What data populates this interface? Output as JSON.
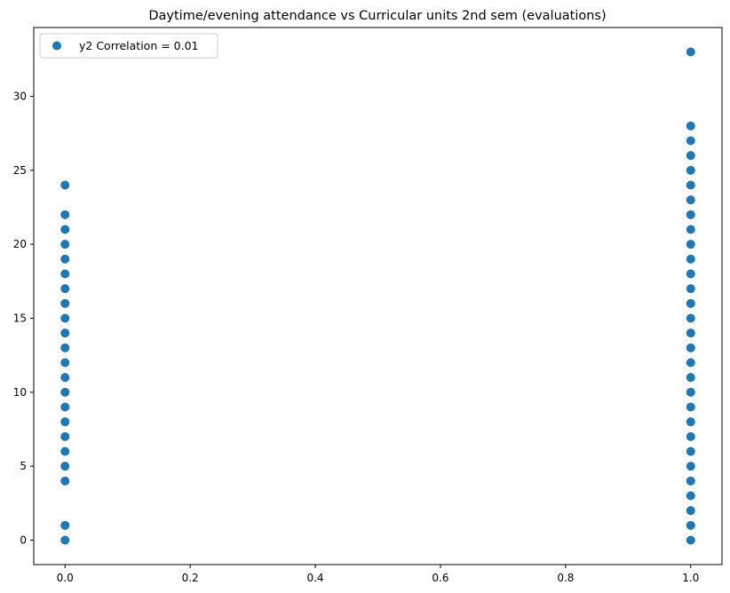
{
  "chart_data": {
    "type": "scatter",
    "title": "Daytime/evening attendance\t vs Curricular units 2nd sem (evaluations)",
    "xlabel": "",
    "ylabel": "",
    "xlim": [
      -0.05,
      1.05
    ],
    "ylim": [
      -1.65,
      34.65
    ],
    "x_ticks": [
      0.0,
      0.2,
      0.4,
      0.6,
      0.8,
      1.0
    ],
    "x_tick_labels": [
      "0.0",
      "0.2",
      "0.4",
      "0.6",
      "0.8",
      "1.0"
    ],
    "y_ticks": [
      0,
      5,
      10,
      15,
      20,
      25,
      30
    ],
    "y_tick_labels": [
      "0",
      "5",
      "10",
      "15",
      "20",
      "25",
      "30"
    ],
    "grid": false,
    "legend": {
      "placement": "top-left",
      "entries": [
        "y2 Correlation = 0.01"
      ]
    },
    "series": [
      {
        "name": "y2 Correlation = 0.01",
        "color": "#1f77b4",
        "points": [
          [
            0,
            0
          ],
          [
            0,
            1
          ],
          [
            0,
            4
          ],
          [
            0,
            5
          ],
          [
            0,
            6
          ],
          [
            0,
            7
          ],
          [
            0,
            8
          ],
          [
            0,
            9
          ],
          [
            0,
            10
          ],
          [
            0,
            11
          ],
          [
            0,
            12
          ],
          [
            0,
            13
          ],
          [
            0,
            14
          ],
          [
            0,
            15
          ],
          [
            0,
            16
          ],
          [
            0,
            17
          ],
          [
            0,
            18
          ],
          [
            0,
            19
          ],
          [
            0,
            20
          ],
          [
            0,
            21
          ],
          [
            0,
            22
          ],
          [
            0,
            24
          ],
          [
            1,
            0
          ],
          [
            1,
            1
          ],
          [
            1,
            2
          ],
          [
            1,
            3
          ],
          [
            1,
            4
          ],
          [
            1,
            5
          ],
          [
            1,
            6
          ],
          [
            1,
            7
          ],
          [
            1,
            8
          ],
          [
            1,
            9
          ],
          [
            1,
            10
          ],
          [
            1,
            11
          ],
          [
            1,
            12
          ],
          [
            1,
            13
          ],
          [
            1,
            14
          ],
          [
            1,
            15
          ],
          [
            1,
            16
          ],
          [
            1,
            17
          ],
          [
            1,
            18
          ],
          [
            1,
            19
          ],
          [
            1,
            20
          ],
          [
            1,
            21
          ],
          [
            1,
            22
          ],
          [
            1,
            23
          ],
          [
            1,
            24
          ],
          [
            1,
            25
          ],
          [
            1,
            26
          ],
          [
            1,
            27
          ],
          [
            1,
            28
          ],
          [
            1,
            33
          ]
        ]
      }
    ]
  }
}
